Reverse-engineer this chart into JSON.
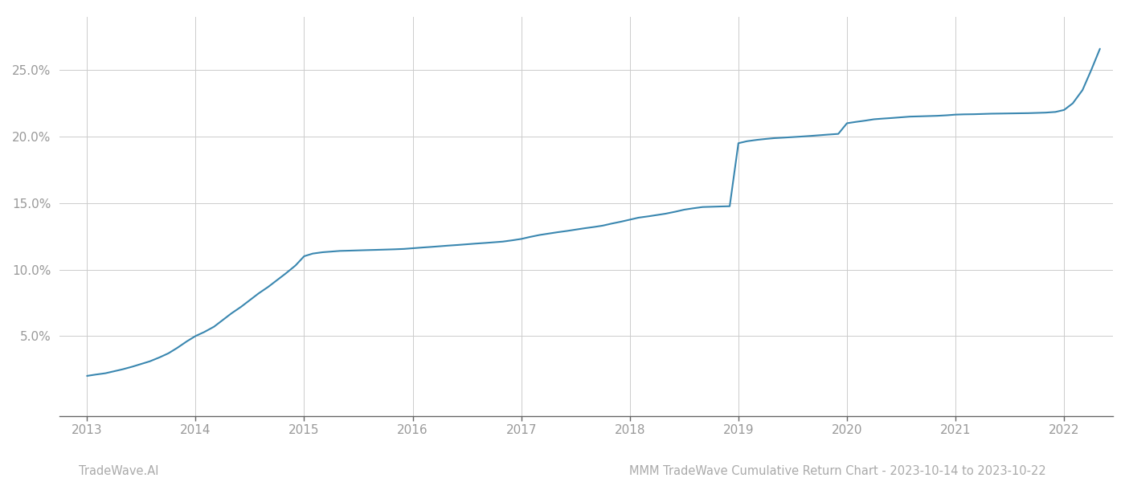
{
  "x_years": [
    2013.0,
    2013.08,
    2013.17,
    2013.25,
    2013.33,
    2013.42,
    2013.5,
    2013.58,
    2013.67,
    2013.75,
    2013.83,
    2013.92,
    2014.0,
    2014.08,
    2014.17,
    2014.25,
    2014.33,
    2014.42,
    2014.5,
    2014.58,
    2014.67,
    2014.75,
    2014.83,
    2014.92,
    2015.0,
    2015.08,
    2015.17,
    2015.25,
    2015.33,
    2015.42,
    2015.5,
    2015.58,
    2015.67,
    2015.75,
    2015.83,
    2015.92,
    2016.0,
    2016.08,
    2016.17,
    2016.25,
    2016.33,
    2016.42,
    2016.5,
    2016.58,
    2016.67,
    2016.75,
    2016.83,
    2016.92,
    2017.0,
    2017.08,
    2017.17,
    2017.25,
    2017.33,
    2017.42,
    2017.5,
    2017.58,
    2017.67,
    2017.75,
    2017.83,
    2017.92,
    2018.0,
    2018.08,
    2018.17,
    2018.25,
    2018.33,
    2018.42,
    2018.5,
    2018.58,
    2018.67,
    2018.75,
    2018.83,
    2018.92,
    2019.0,
    2019.08,
    2019.17,
    2019.25,
    2019.33,
    2019.42,
    2019.5,
    2019.58,
    2019.67,
    2019.75,
    2019.83,
    2019.92,
    2020.0,
    2020.08,
    2020.17,
    2020.25,
    2020.33,
    2020.42,
    2020.5,
    2020.58,
    2020.67,
    2020.75,
    2020.83,
    2020.92,
    2021.0,
    2021.08,
    2021.17,
    2021.25,
    2021.33,
    2021.42,
    2021.5,
    2021.58,
    2021.67,
    2021.75,
    2021.83,
    2021.92,
    2022.0,
    2022.08,
    2022.17,
    2022.25,
    2022.33
  ],
  "y_values": [
    2.0,
    2.1,
    2.2,
    2.35,
    2.5,
    2.7,
    2.9,
    3.1,
    3.4,
    3.7,
    4.1,
    4.6,
    5.0,
    5.3,
    5.7,
    6.2,
    6.7,
    7.2,
    7.7,
    8.2,
    8.7,
    9.2,
    9.7,
    10.3,
    11.0,
    11.2,
    11.3,
    11.35,
    11.4,
    11.42,
    11.44,
    11.46,
    11.48,
    11.5,
    11.52,
    11.55,
    11.6,
    11.65,
    11.7,
    11.75,
    11.8,
    11.85,
    11.9,
    11.95,
    12.0,
    12.05,
    12.1,
    12.2,
    12.3,
    12.45,
    12.6,
    12.7,
    12.8,
    12.9,
    13.0,
    13.1,
    13.2,
    13.3,
    13.45,
    13.6,
    13.75,
    13.9,
    14.0,
    14.1,
    14.2,
    14.35,
    14.5,
    14.6,
    14.7,
    14.72,
    14.74,
    14.76,
    19.5,
    19.65,
    19.75,
    19.82,
    19.88,
    19.92,
    19.96,
    20.0,
    20.05,
    20.1,
    20.15,
    20.2,
    21.0,
    21.1,
    21.2,
    21.3,
    21.35,
    21.4,
    21.45,
    21.5,
    21.52,
    21.54,
    21.56,
    21.6,
    21.65,
    21.67,
    21.68,
    21.7,
    21.72,
    21.73,
    21.74,
    21.75,
    21.76,
    21.78,
    21.8,
    21.85,
    22.0,
    22.5,
    23.5,
    25.0,
    26.6
  ],
  "line_color": "#3a87b0",
  "line_width": 1.5,
  "background_color": "#ffffff",
  "grid_color": "#cccccc",
  "tick_label_color": "#999999",
  "x_ticks": [
    2013,
    2014,
    2015,
    2016,
    2017,
    2018,
    2019,
    2020,
    2021,
    2022
  ],
  "y_ticks": [
    5.0,
    10.0,
    15.0,
    20.0,
    25.0
  ],
  "xlim": [
    2012.75,
    2022.45
  ],
  "ylim": [
    -1.0,
    29.0
  ],
  "footer_left": "TradeWave.AI",
  "footer_right": "MMM TradeWave Cumulative Return Chart - 2023-10-14 to 2023-10-22",
  "footer_color": "#aaaaaa",
  "footer_fontsize": 10.5,
  "spine_color": "#666666",
  "tick_fontsize": 11
}
